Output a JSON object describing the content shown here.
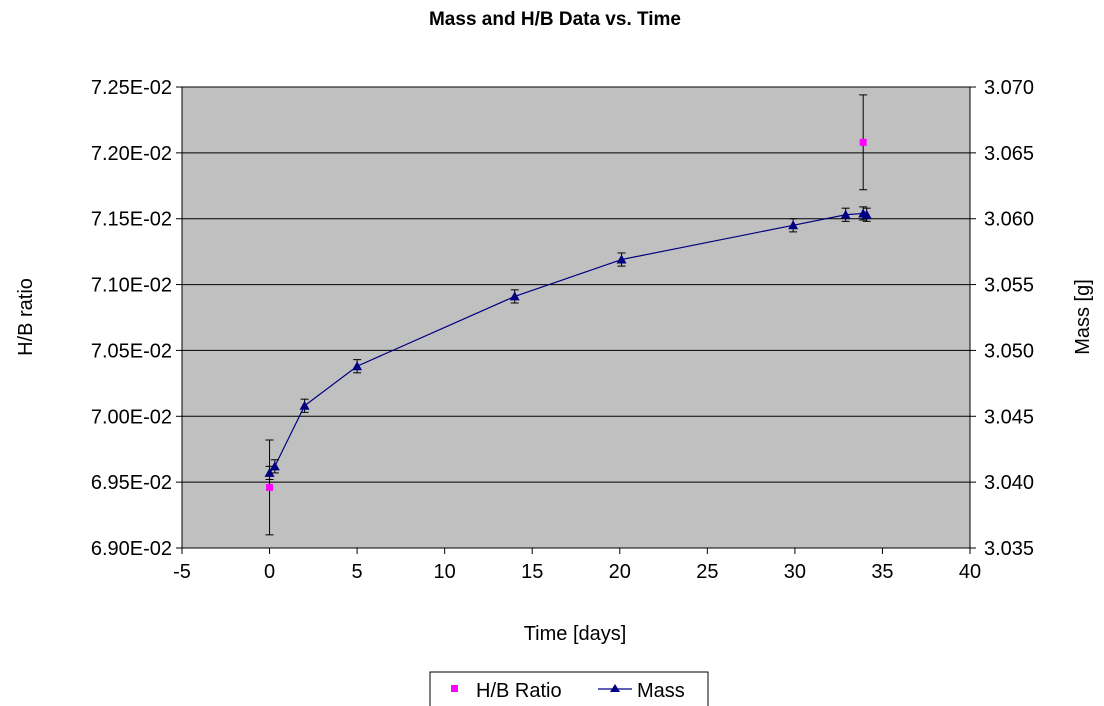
{
  "chart_data": {
    "type": "scatter",
    "title": "Mass and H/B Data vs. Time",
    "xlabel": "Time [days]",
    "ylabel_left": "H/B ratio",
    "ylabel_right": "Mass [g]",
    "xlim": [
      -5,
      40
    ],
    "xticks": [
      -5,
      0,
      5,
      10,
      15,
      20,
      25,
      30,
      35,
      40
    ],
    "xtick_labels": [
      "-5",
      "0",
      "5",
      "10",
      "15",
      "20",
      "25",
      "30",
      "35",
      "40"
    ],
    "ylim_left": [
      0.069,
      0.0725
    ],
    "yticks_left": [
      0.069,
      0.0695,
      0.07,
      0.0705,
      0.071,
      0.0715,
      0.072,
      0.0725
    ],
    "ytick_labels_left": [
      "6.90E-02",
      "6.95E-02",
      "7.00E-02",
      "7.05E-02",
      "7.10E-02",
      "7.15E-02",
      "7.20E-02",
      "7.25E-02"
    ],
    "ylim_right": [
      3.035,
      3.07
    ],
    "yticks_right": [
      3.035,
      3.04,
      3.045,
      3.05,
      3.055,
      3.06,
      3.065,
      3.07
    ],
    "ytick_labels_right": [
      "3.035",
      "3.040",
      "3.045",
      "3.050",
      "3.055",
      "3.060",
      "3.065",
      "3.070"
    ],
    "grid": true,
    "plot_background": "#c0c0c0",
    "legend_position": "bottom",
    "series": [
      {
        "name": "H/B Ratio",
        "axis": "left",
        "marker": "square",
        "color": "#ff00ff",
        "line": false,
        "x": [
          0,
          33.9
        ],
        "y": [
          0.06946,
          0.07208
        ],
        "error": [
          0.00036,
          0.00036
        ]
      },
      {
        "name": "Mass",
        "axis": "right",
        "marker": "triangle",
        "color": "#000080",
        "line": true,
        "x": [
          0,
          0.3,
          2,
          5,
          14,
          20.1,
          29.9,
          32.9,
          33.9,
          34.1
        ],
        "y": [
          3.0407,
          3.0412,
          3.0458,
          3.0488,
          3.0541,
          3.0569,
          3.0595,
          3.0603,
          3.0604,
          3.0603
        ],
        "error": [
          0.0005,
          0.0005,
          0.0005,
          0.0005,
          0.0005,
          0.0005,
          0.0005,
          0.0005,
          0.0005,
          0.0005
        ]
      }
    ]
  }
}
